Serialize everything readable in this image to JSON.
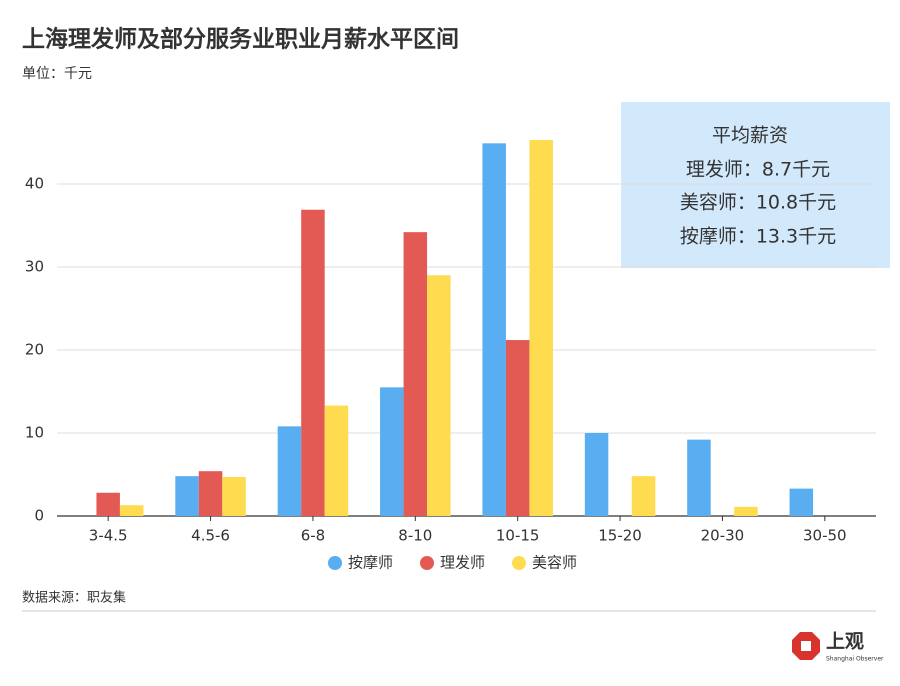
{
  "chart_data": {
    "type": "bar",
    "title": "上海理发师及部分服务业职业月薪水平区间",
    "subtitle": "单位：千元",
    "categories": [
      "3-4.5",
      "4.5-6",
      "6-8",
      "8-10",
      "10-15",
      "15-20",
      "20-30",
      "30-50"
    ],
    "series": [
      {
        "name": "按摩师",
        "color": "#58aef0",
        "values": [
          null,
          4.8,
          10.8,
          15.5,
          44.9,
          10.0,
          9.2,
          3.3
        ]
      },
      {
        "name": "理发师",
        "color": "#e35a55",
        "values": [
          2.8,
          5.4,
          36.9,
          34.2,
          21.2,
          null,
          null,
          null
        ]
      },
      {
        "name": "美容师",
        "color": "#fedb4f",
        "values": [
          1.3,
          4.7,
          13.3,
          29.0,
          45.3,
          4.8,
          1.1,
          null
        ]
      }
    ],
    "ylim": [
      0,
      50
    ],
    "yticks": [
      0,
      10,
      20,
      30,
      40
    ],
    "grid": true,
    "legend": "bottom",
    "annotations": [
      "平均薪资",
      "理发师：8.7千元",
      "美容师：10.8千元",
      "按摩师：13.3千元"
    ],
    "source": "数据来源：职友集",
    "brand": "上观",
    "brand_subtitle": "Shanghai Observer"
  }
}
